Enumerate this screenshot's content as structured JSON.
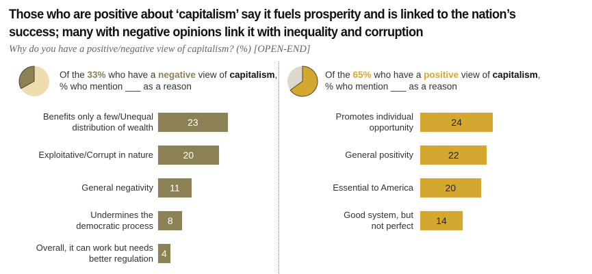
{
  "title": "Those who are positive about ‘capitalism’ say it fuels prosperity and is linked to the nation’s success; many with negative opinions link it with inequality and corruption",
  "subtitle": "Why do you have a positive/negative view of capitalism? (%) [OPEN-END]",
  "colors": {
    "negative": "#8c8055",
    "negative_light": "#ecdcae",
    "positive": "#d4a82f",
    "positive_rest": "#dcd8cc"
  },
  "chart_data": [
    {
      "type": "bar",
      "orientation": "horizontal",
      "panel": "negative",
      "intro": {
        "prefix": "Of the ",
        "share": "33%",
        "middle": " who have a ",
        "view": "negative",
        "suffix": " view of ",
        "subject": "capitalism",
        "end": ",",
        "line2": "% who mention ___ as a reason"
      },
      "pie_share": 33,
      "categories": [
        "Benefits only a few/Unequal distribution of wealth",
        "Exploitative/Corrupt in nature",
        "General negativity",
        "Undermines the democratic process",
        "Overall, it can work but needs better regulation"
      ],
      "values": [
        23,
        20,
        11,
        8,
        4
      ],
      "value_labels": [
        "23",
        "20",
        "11",
        "8",
        "4"
      ]
    },
    {
      "type": "bar",
      "orientation": "horizontal",
      "panel": "positive",
      "intro": {
        "prefix": "Of the ",
        "share": "65%",
        "middle": " who have a ",
        "view": "positive",
        "suffix": " view of ",
        "subject": "capitalism",
        "end": ",",
        "line2": "% who mention ___ as a reason"
      },
      "pie_share": 65,
      "categories": [
        "Promotes individual opportunity",
        "General positivity",
        "Essential to America",
        "Good system, but not perfect"
      ],
      "values": [
        24,
        22,
        20,
        14
      ],
      "value_labels": [
        "24",
        "22",
        "20",
        "14"
      ]
    }
  ]
}
